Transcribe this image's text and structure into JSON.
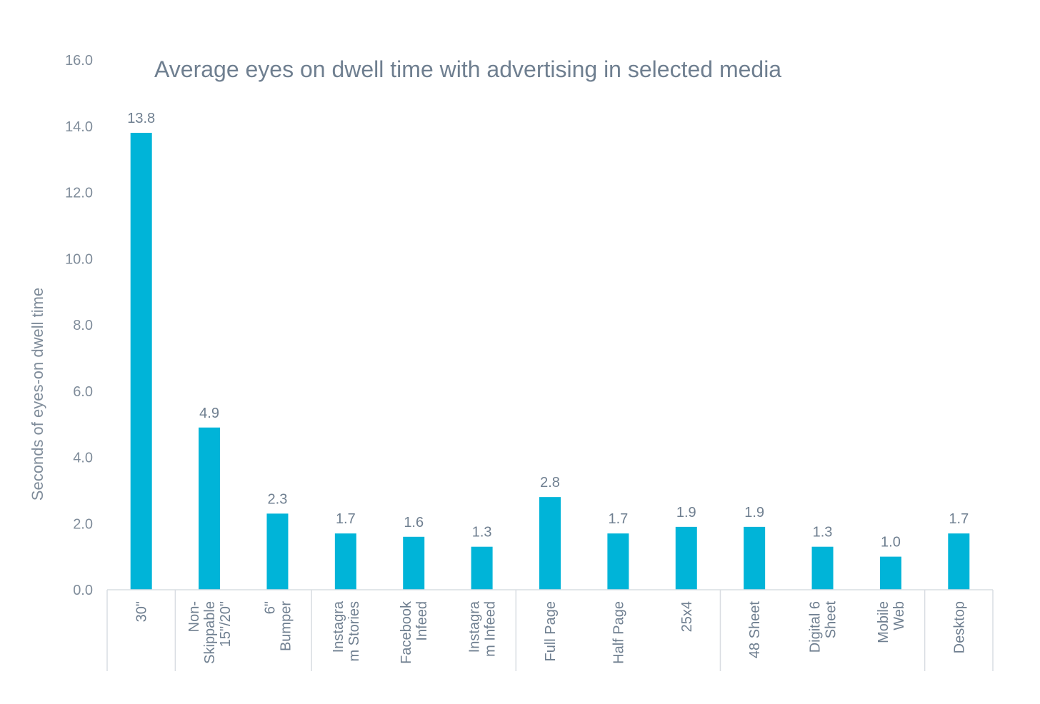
{
  "chart_data": {
    "type": "bar",
    "title": "Average eyes on dwell time with advertising in selected media",
    "ylabel": "Seconds of eyes-on dwell time",
    "xlabel": "",
    "ylim": [
      0,
      16
    ],
    "yticks": [
      "0.0",
      "2.0",
      "4.0",
      "6.0",
      "8.0",
      "10.0",
      "12.0",
      "14.0",
      "16.0"
    ],
    "categories": [
      [
        "30\""
      ],
      [
        "Non-",
        "Skippable",
        "15\"/20\""
      ],
      [
        "6\"",
        "Bumper"
      ],
      [
        "Instagra",
        "m Stories"
      ],
      [
        "Facebook",
        "Infeed"
      ],
      [
        "Instagra",
        "m Infeed"
      ],
      [
        "Full Page"
      ],
      [
        "Half Page"
      ],
      [
        "25x4"
      ],
      [
        "48 Sheet"
      ],
      [
        "Digital 6",
        "Sheet"
      ],
      [
        "Mobile",
        "Web"
      ],
      [
        "Desktop"
      ]
    ],
    "values": [
      13.8,
      4.9,
      2.3,
      1.7,
      1.6,
      1.3,
      2.8,
      1.7,
      1.9,
      1.9,
      1.3,
      1.0,
      1.7
    ],
    "value_labels": [
      "13.8",
      "4.9",
      "2.3",
      "1.7",
      "1.6",
      "1.3",
      "2.8",
      "1.7",
      "1.9",
      "1.9",
      "1.3",
      "1.0",
      "1.7"
    ],
    "bar_color": "#00b4d8",
    "grid": false,
    "legend": "none"
  }
}
